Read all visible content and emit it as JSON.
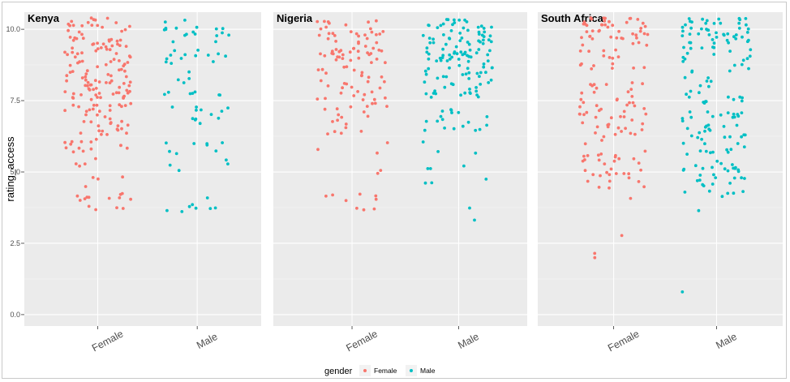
{
  "chart_data": {
    "type": "scatter",
    "variant": "jitter-strip, faceted",
    "ylabel": "rating_access",
    "ylim": [
      -0.4,
      10.6
    ],
    "yticks": [
      "0.0",
      "2.5",
      "5.0",
      "7.5",
      "10.0"
    ],
    "ytick_values": [
      0,
      2.5,
      5,
      7.5,
      10
    ],
    "categories": [
      "Female",
      "Male"
    ],
    "grid": true,
    "legend": {
      "title": "gender",
      "position": "bottom",
      "entries": [
        {
          "label": "Female",
          "color": "#F8766D"
        },
        {
          "label": "Male",
          "color": "#00BFC4"
        }
      ]
    },
    "facets": [
      {
        "title": "Kenya",
        "series": [
          {
            "name": "Female",
            "color": "#F8766D",
            "n": 190,
            "bands": [
              [
                3.6,
                4.3,
                14
              ],
              [
                4.3,
                5.5,
                8
              ],
              [
                5.5,
                6.3,
                14
              ],
              [
                6.3,
                7.0,
                20
              ],
              [
                7.0,
                7.5,
                16
              ],
              [
                7.5,
                8.4,
                44
              ],
              [
                8.4,
                9.0,
                20
              ],
              [
                9.0,
                9.6,
                26
              ],
              [
                9.6,
                10.4,
                28
              ]
            ],
            "y_sample": [
              10.3,
              10.2,
              10.3,
              9.9,
              9.7,
              9.4,
              9.2,
              9.0,
              8.9,
              8.8,
              8.6,
              8.2,
              8.1,
              8.0,
              7.9,
              7.8,
              7.8,
              7.7,
              7.3,
              7.2,
              7.0,
              6.9,
              6.8,
              6.8,
              6.5,
              6.2,
              6.1,
              6.1,
              5.9,
              5.7,
              5.3,
              5.0,
              4.8,
              4.7,
              4.2,
              4.1,
              4.0,
              3.9,
              3.8,
              3.7
            ]
          },
          {
            "name": "Male",
            "color": "#00BFC4",
            "n": 74,
            "bands": [
              [
                3.6,
                4.2,
                8
              ],
              [
                5.0,
                5.8,
                7
              ],
              [
                5.8,
                6.2,
                5
              ],
              [
                6.6,
                7.3,
                12
              ],
              [
                7.6,
                8.3,
                10
              ],
              [
                8.5,
                9.3,
                14
              ],
              [
                9.5,
                10.4,
                18
              ]
            ],
            "y_sample": [
              10.3,
              10.3,
              10.2,
              10.0,
              9.9,
              9.6,
              9.3,
              9.2,
              8.9,
              8.7,
              8.4,
              8.1,
              7.8,
              7.7,
              7.3,
              7.1,
              6.8,
              6.8,
              6.1,
              5.9,
              5.8,
              5.6,
              5.2,
              5.1,
              4.2,
              4.1,
              4.0,
              3.9,
              3.6
            ]
          }
        ]
      },
      {
        "title": "Nigeria",
        "series": [
          {
            "name": "Female",
            "color": "#F8766D",
            "n": 120,
            "bands": [
              [
                3.6,
                4.3,
                9
              ],
              [
                4.6,
                6.2,
                5
              ],
              [
                6.2,
                7.0,
                10
              ],
              [
                7.0,
                7.6,
                14
              ],
              [
                7.6,
                8.4,
                18
              ],
              [
                8.4,
                9.2,
                24
              ],
              [
                9.2,
                10.4,
                40
              ]
            ],
            "y_sample": [
              10.4,
              10.3,
              10.1,
              10.0,
              9.8,
              9.6,
              9.3,
              9.1,
              9.0,
              8.7,
              8.4,
              8.2,
              7.9,
              7.5,
              7.3,
              7.0,
              6.8,
              6.7,
              6.3,
              5.7,
              5.2,
              4.9,
              4.2,
              4.0,
              3.9,
              3.7,
              3.7
            ]
          },
          {
            "name": "Male",
            "color": "#00BFC4",
            "n": 150,
            "bands": [
              [
                3.2,
                3.4,
                1
              ],
              [
                3.6,
                3.8,
                1
              ],
              [
                4.3,
                4.9,
                3
              ],
              [
                5.1,
                6.4,
                6
              ],
              [
                6.4,
                7.2,
                18
              ],
              [
                7.6,
                8.4,
                26
              ],
              [
                8.4,
                9.6,
                58
              ],
              [
                9.6,
                10.4,
                37
              ]
            ],
            "y_sample": [
              10.3,
              10.2,
              10.1,
              9.9,
              9.6,
              9.4,
              9.2,
              9.1,
              9.0,
              8.9,
              8.8,
              8.6,
              8.3,
              8.0,
              7.8,
              7.7,
              7.4,
              7.2,
              6.9,
              6.7,
              6.2,
              5.8,
              5.7,
              5.3,
              4.8,
              4.4,
              3.7,
              3.3
            ]
          }
        ]
      },
      {
        "title": "South Africa",
        "series": [
          {
            "name": "Female",
            "color": "#F8766D",
            "n": 150,
            "bands": [
              [
                1.9,
                2.1,
                1
              ],
              [
                2.1,
                2.3,
                1
              ],
              [
                2.7,
                2.9,
                1
              ],
              [
                3.9,
                4.5,
                4
              ],
              [
                4.5,
                5.5,
                22
              ],
              [
                5.5,
                6.4,
                14
              ],
              [
                6.4,
                7.4,
                28
              ],
              [
                7.4,
                8.2,
                18
              ],
              [
                8.6,
                9.6,
                20
              ],
              [
                9.6,
                10.4,
                41
              ]
            ],
            "y_sample": [
              10.3,
              10.2,
              10.0,
              9.9,
              9.7,
              9.6,
              9.4,
              9.0,
              8.8,
              8.6,
              8.1,
              7.9,
              7.7,
              7.4,
              7.3,
              7.0,
              6.8,
              6.6,
              6.3,
              6.1,
              5.9,
              5.6,
              5.3,
              5.0,
              4.8,
              4.3,
              4.1,
              2.8,
              2.2,
              2.0
            ]
          },
          {
            "name": "Male",
            "color": "#00BFC4",
            "n": 165,
            "bands": [
              [
                0.7,
                0.9,
                1
              ],
              [
                3.5,
                3.7,
                1
              ],
              [
                3.9,
                4.4,
                6
              ],
              [
                4.5,
                5.3,
                26
              ],
              [
                5.3,
                6.0,
                12
              ],
              [
                6.0,
                6.8,
                20
              ],
              [
                6.8,
                7.5,
                18
              ],
              [
                7.5,
                8.4,
                14
              ],
              [
                8.4,
                9.2,
                14
              ],
              [
                9.2,
                9.7,
                16
              ],
              [
                9.7,
                10.4,
                37
              ]
            ],
            "y_sample": [
              10.3,
              10.2,
              10.1,
              9.9,
              9.8,
              9.6,
              9.3,
              9.0,
              8.8,
              8.6,
              8.2,
              7.9,
              7.7,
              7.4,
              7.2,
              7.0,
              6.8,
              6.6,
              6.4,
              6.2,
              6.0,
              5.8,
              5.5,
              5.2,
              5.0,
              4.8,
              4.6,
              4.3,
              4.1,
              3.6,
              0.8
            ]
          }
        ]
      }
    ]
  }
}
